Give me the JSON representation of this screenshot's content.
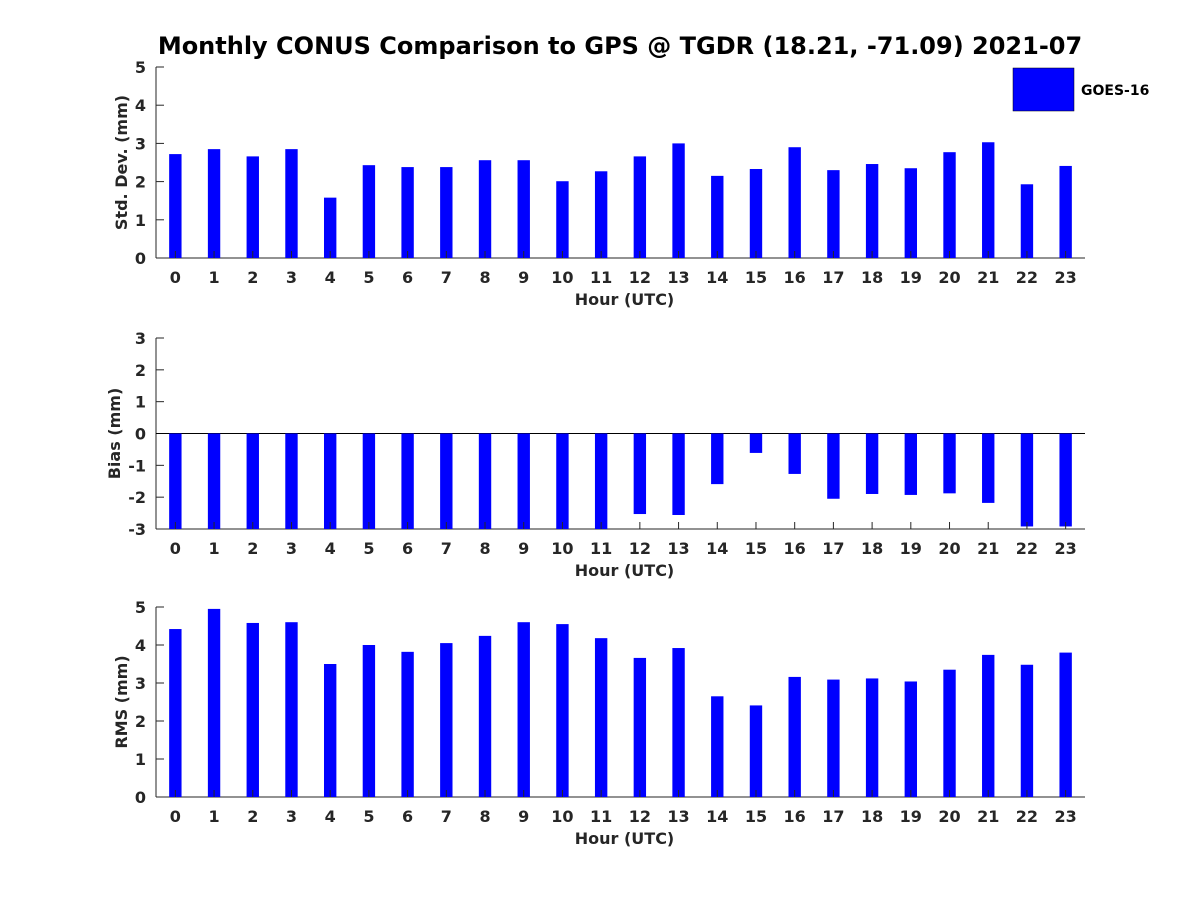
{
  "title": "Monthly CONUS Comparison to GPS @ TGDR (18.21, -71.09) 2021-07",
  "legend": {
    "label": "GOES-16",
    "color": "#0000ff"
  },
  "chart_data": [
    {
      "type": "bar",
      "xlabel": "Hour (UTC)",
      "ylabel": "Std. Dev. (mm)",
      "ylim": [
        0,
        5
      ],
      "yticks": [
        0,
        1,
        2,
        3,
        4,
        5
      ],
      "categories": [
        "0",
        "1",
        "2",
        "3",
        "4",
        "5",
        "6",
        "7",
        "8",
        "9",
        "10",
        "11",
        "12",
        "13",
        "14",
        "15",
        "16",
        "17",
        "18",
        "19",
        "20",
        "21",
        "22",
        "23"
      ],
      "series": [
        {
          "name": "GOES-16",
          "color": "#0000ff",
          "values": [
            2.72,
            2.85,
            2.66,
            2.85,
            1.58,
            2.43,
            2.38,
            2.38,
            2.56,
            2.56,
            2.01,
            2.27,
            2.66,
            3.0,
            2.15,
            2.33,
            2.9,
            2.3,
            2.46,
            2.35,
            2.77,
            3.03,
            1.93,
            2.41
          ]
        }
      ]
    },
    {
      "type": "bar",
      "xlabel": "Hour (UTC)",
      "ylabel": "Bias (mm)",
      "ylim": [
        -3,
        3
      ],
      "yticks": [
        -3,
        -2,
        -1,
        0,
        1,
        2,
        3
      ],
      "categories": [
        "0",
        "1",
        "2",
        "3",
        "4",
        "5",
        "6",
        "7",
        "8",
        "9",
        "10",
        "11",
        "12",
        "13",
        "14",
        "15",
        "16",
        "17",
        "18",
        "19",
        "20",
        "21",
        "22",
        "23"
      ],
      "series": [
        {
          "name": "GOES-16",
          "color": "#0000ff",
          "values": [
            -3.0,
            -3.0,
            -3.0,
            -3.0,
            -3.0,
            -3.0,
            -3.0,
            -3.0,
            -3.0,
            -3.0,
            -3.0,
            -3.0,
            -2.53,
            -2.56,
            -1.59,
            -0.61,
            -1.27,
            -2.05,
            -1.9,
            -1.93,
            -1.88,
            -2.18,
            -2.92,
            -2.92
          ]
        }
      ]
    },
    {
      "type": "bar",
      "xlabel": "Hour (UTC)",
      "ylabel": "RMS (mm)",
      "ylim": [
        0,
        5
      ],
      "yticks": [
        0,
        1,
        2,
        3,
        4,
        5
      ],
      "categories": [
        "0",
        "1",
        "2",
        "3",
        "4",
        "5",
        "6",
        "7",
        "8",
        "9",
        "10",
        "11",
        "12",
        "13",
        "14",
        "15",
        "16",
        "17",
        "18",
        "19",
        "20",
        "21",
        "22",
        "23"
      ],
      "series": [
        {
          "name": "GOES-16",
          "color": "#0000ff",
          "values": [
            4.42,
            4.95,
            4.58,
            4.6,
            3.5,
            4.0,
            3.82,
            4.05,
            4.24,
            4.6,
            4.55,
            4.18,
            3.66,
            3.92,
            2.65,
            2.41,
            3.16,
            3.09,
            3.12,
            3.04,
            3.35,
            3.74,
            3.48,
            3.8
          ]
        }
      ]
    }
  ]
}
